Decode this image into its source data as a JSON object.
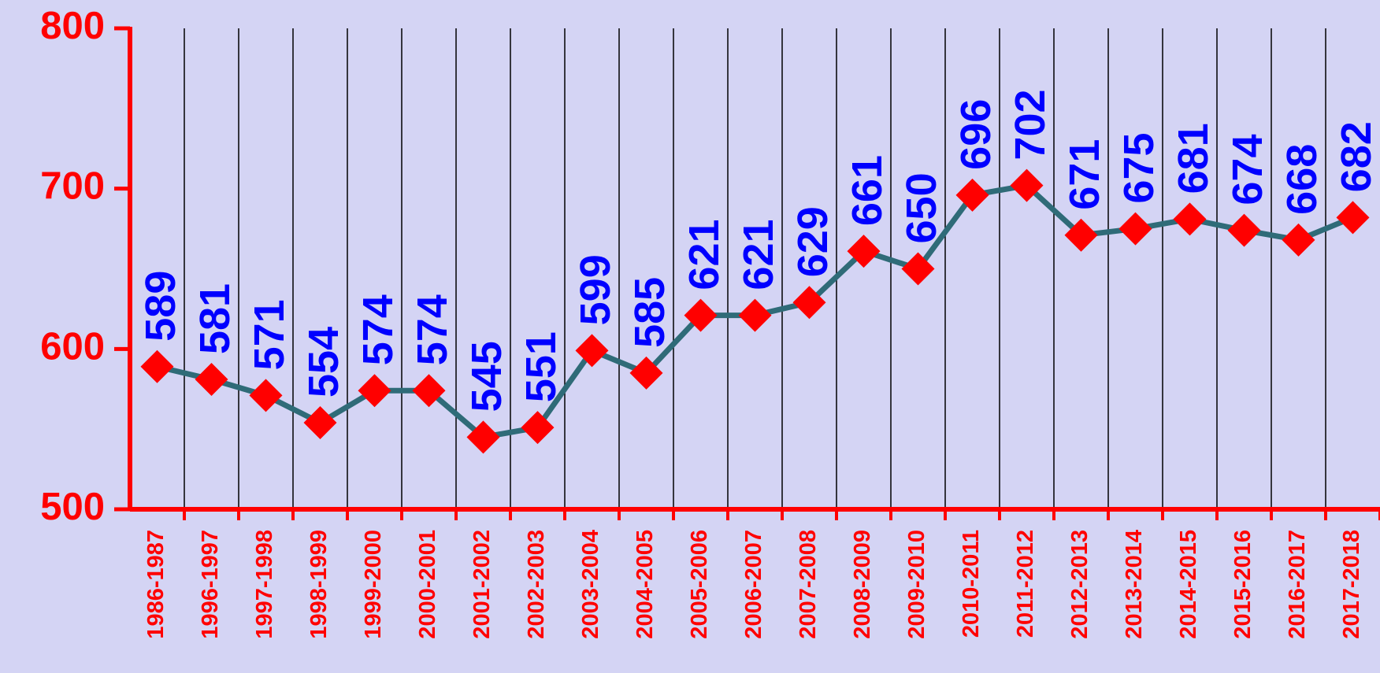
{
  "chart_data": {
    "type": "line",
    "categories": [
      "1986-1987",
      "1996-1997",
      "1997-1998",
      "1998-1999",
      "1999-2000",
      "2000-2001",
      "2001-2002",
      "2002-2003",
      "2003-2004",
      "2004-2005",
      "2005-2006",
      "2006-2007",
      "2007-2008",
      "2008-2009",
      "2009-2010",
      "2010-2011",
      "2011-2012",
      "2012-2013",
      "2013-2014",
      "2014-2015",
      "2015-2016",
      "2016-2017",
      "2017-2018"
    ],
    "values": [
      589,
      581,
      571,
      554,
      574,
      574,
      545,
      551,
      599,
      585,
      621,
      621,
      629,
      661,
      650,
      696,
      702,
      671,
      675,
      681,
      674,
      668,
      682
    ],
    "color": "#2f6b78",
    "marker_color": "#ff0000",
    "ylim": [
      500,
      800
    ],
    "yticks": [
      500,
      600,
      700,
      800
    ],
    "grid": true
  }
}
